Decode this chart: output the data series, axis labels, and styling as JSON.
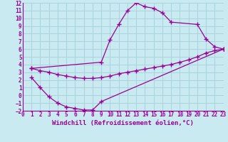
{
  "xlabel": "Windchill (Refroidissement éolien,°C)",
  "xlim": [
    0,
    23
  ],
  "ylim": [
    -2,
    12
  ],
  "xticks": [
    0,
    1,
    2,
    3,
    4,
    5,
    6,
    7,
    8,
    9,
    10,
    11,
    12,
    13,
    14,
    15,
    16,
    17,
    18,
    19,
    20,
    21,
    22,
    23
  ],
  "yticks": [
    -2,
    -1,
    0,
    1,
    2,
    3,
    4,
    5,
    6,
    7,
    8,
    9,
    10,
    11,
    12
  ],
  "bg_color": "#c8eaf0",
  "grid_color": "#aad4dc",
  "line_color": "#990099",
  "curve1_x": [
    1,
    9,
    10,
    11,
    12,
    13,
    14,
    15,
    16,
    17,
    20,
    21,
    22,
    23
  ],
  "curve1_y": [
    3.5,
    4.3,
    7.2,
    9.2,
    11.0,
    12.0,
    11.5,
    11.3,
    10.7,
    9.5,
    9.2,
    7.3,
    6.3,
    6.0
  ],
  "curve2_x": [
    1,
    2,
    3,
    4,
    5,
    6,
    7,
    8,
    9,
    10,
    11,
    12,
    13,
    14,
    15,
    16,
    17,
    18,
    19,
    20,
    21,
    22,
    23
  ],
  "curve2_y": [
    3.5,
    3.2,
    3.0,
    2.7,
    2.5,
    2.3,
    2.2,
    2.2,
    2.3,
    2.5,
    2.8,
    3.0,
    3.2,
    3.4,
    3.6,
    3.8,
    4.0,
    4.3,
    4.6,
    5.0,
    5.5,
    5.8,
    6.0
  ],
  "curve3_x": [
    1,
    2,
    3,
    4,
    5,
    6,
    7,
    8,
    9,
    23
  ],
  "curve3_y": [
    2.3,
    1.0,
    -0.2,
    -1.0,
    -1.5,
    -1.7,
    -1.9,
    -1.9,
    -0.8,
    6.0
  ],
  "font_family": "monospace",
  "tick_fontsize": 5.5,
  "label_fontsize": 6.5
}
